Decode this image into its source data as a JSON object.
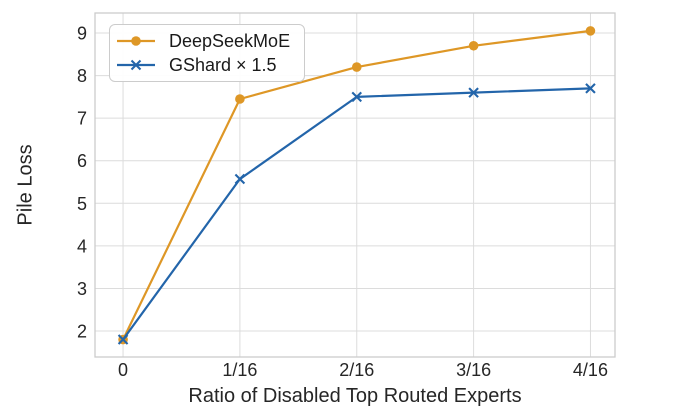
{
  "figure": {
    "background_color": "#ffffff",
    "grid_color": "#dcdcdc",
    "spine_color": "#cccccc",
    "text_color": "#262626"
  },
  "chart_data": {
    "type": "line",
    "title": "",
    "xlabel": "Ratio of Disabled Top Routed Experts",
    "ylabel": "Pile Loss",
    "grid": true,
    "legend_position": "upper left",
    "xtick_labels": [
      "0",
      "1/16",
      "2/16",
      "3/16",
      "4/16"
    ],
    "xtick_values": [
      0,
      1,
      2,
      3,
      4
    ],
    "ytick_labels": [
      "2",
      "3",
      "4",
      "5",
      "6",
      "7",
      "8",
      "9"
    ],
    "ytick_values": [
      2,
      3,
      4,
      5,
      6,
      7,
      8,
      9
    ],
    "xlim": [
      -0.24,
      4.21
    ],
    "ylim": [
      1.39,
      9.47
    ],
    "x_axis_unit": "sixteenths",
    "series": [
      {
        "name": "DeepSeekMoE",
        "color": "#DE9726",
        "marker": "circle",
        "x": [
          0,
          1,
          2,
          3,
          4
        ],
        "values": [
          1.8,
          7.45,
          8.2,
          8.7,
          9.05
        ]
      },
      {
        "name": "GShard × 1.5",
        "color": "#2365AA",
        "marker": "x",
        "x": [
          0,
          1,
          2,
          3,
          4
        ],
        "values": [
          1.8,
          5.57,
          7.5,
          7.6,
          7.7
        ]
      }
    ]
  }
}
